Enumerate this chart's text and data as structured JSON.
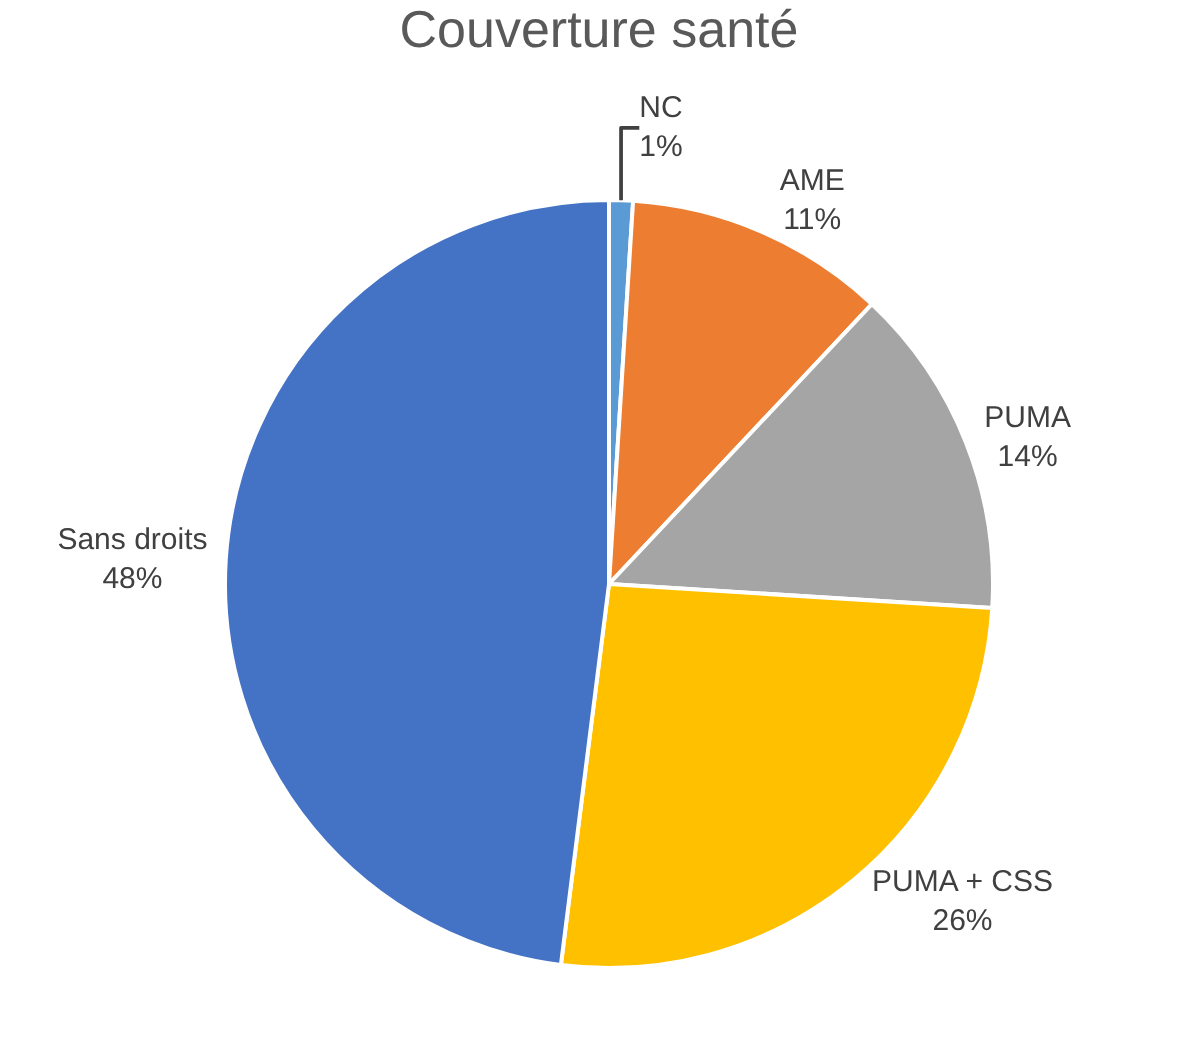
{
  "chart_data": {
    "type": "pie",
    "title": "Couverture santé",
    "categories": [
      "NC",
      "AME",
      "PUMA",
      "PUMA + CSS",
      "Sans droits"
    ],
    "values": [
      1,
      11,
      14,
      26,
      48
    ],
    "value_labels": [
      "1%",
      "11%",
      "14%",
      "26%",
      "48%"
    ],
    "colors": [
      "#5b9bd5",
      "#ed7d31",
      "#a5a5a5",
      "#ffc000",
      "#4472c4"
    ],
    "legend": false
  }
}
